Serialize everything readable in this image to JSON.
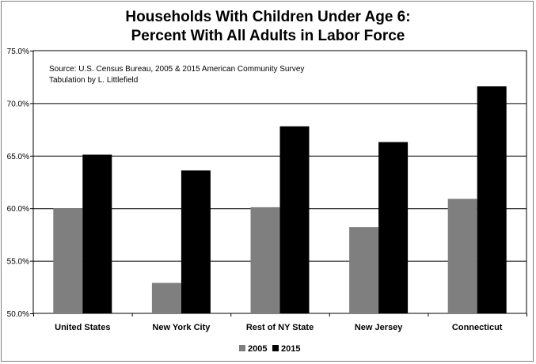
{
  "chart_data": {
    "type": "bar",
    "title": "Households With Children Under Age 6:",
    "subtitle": "Percent With All Adults in Labor Force",
    "categories": [
      "United States",
      "New York City",
      "Rest of NY State",
      "New Jersey",
      "Connecticut"
    ],
    "series": [
      {
        "name": "2005",
        "values": [
          60.0,
          52.9,
          60.1,
          58.2,
          60.9
        ],
        "color": "#7f7f7f"
      },
      {
        "name": "2015",
        "values": [
          65.1,
          63.6,
          67.8,
          66.3,
          71.6
        ],
        "color": "#000000"
      }
    ],
    "ylim": [
      50,
      75
    ],
    "yticks": [
      50,
      55,
      60,
      65,
      70,
      75
    ],
    "ytick_labels": [
      "50.0%",
      "55.0%",
      "60.0%",
      "65.0%",
      "70.0%",
      "75.0%"
    ],
    "grid": true,
    "legend_position": "bottom",
    "annotation_lines": [
      "Source:  U.S. Census Bureau, 2005 & 2015 American Community Survey",
      "Tabulation by L. Littlefield"
    ]
  }
}
